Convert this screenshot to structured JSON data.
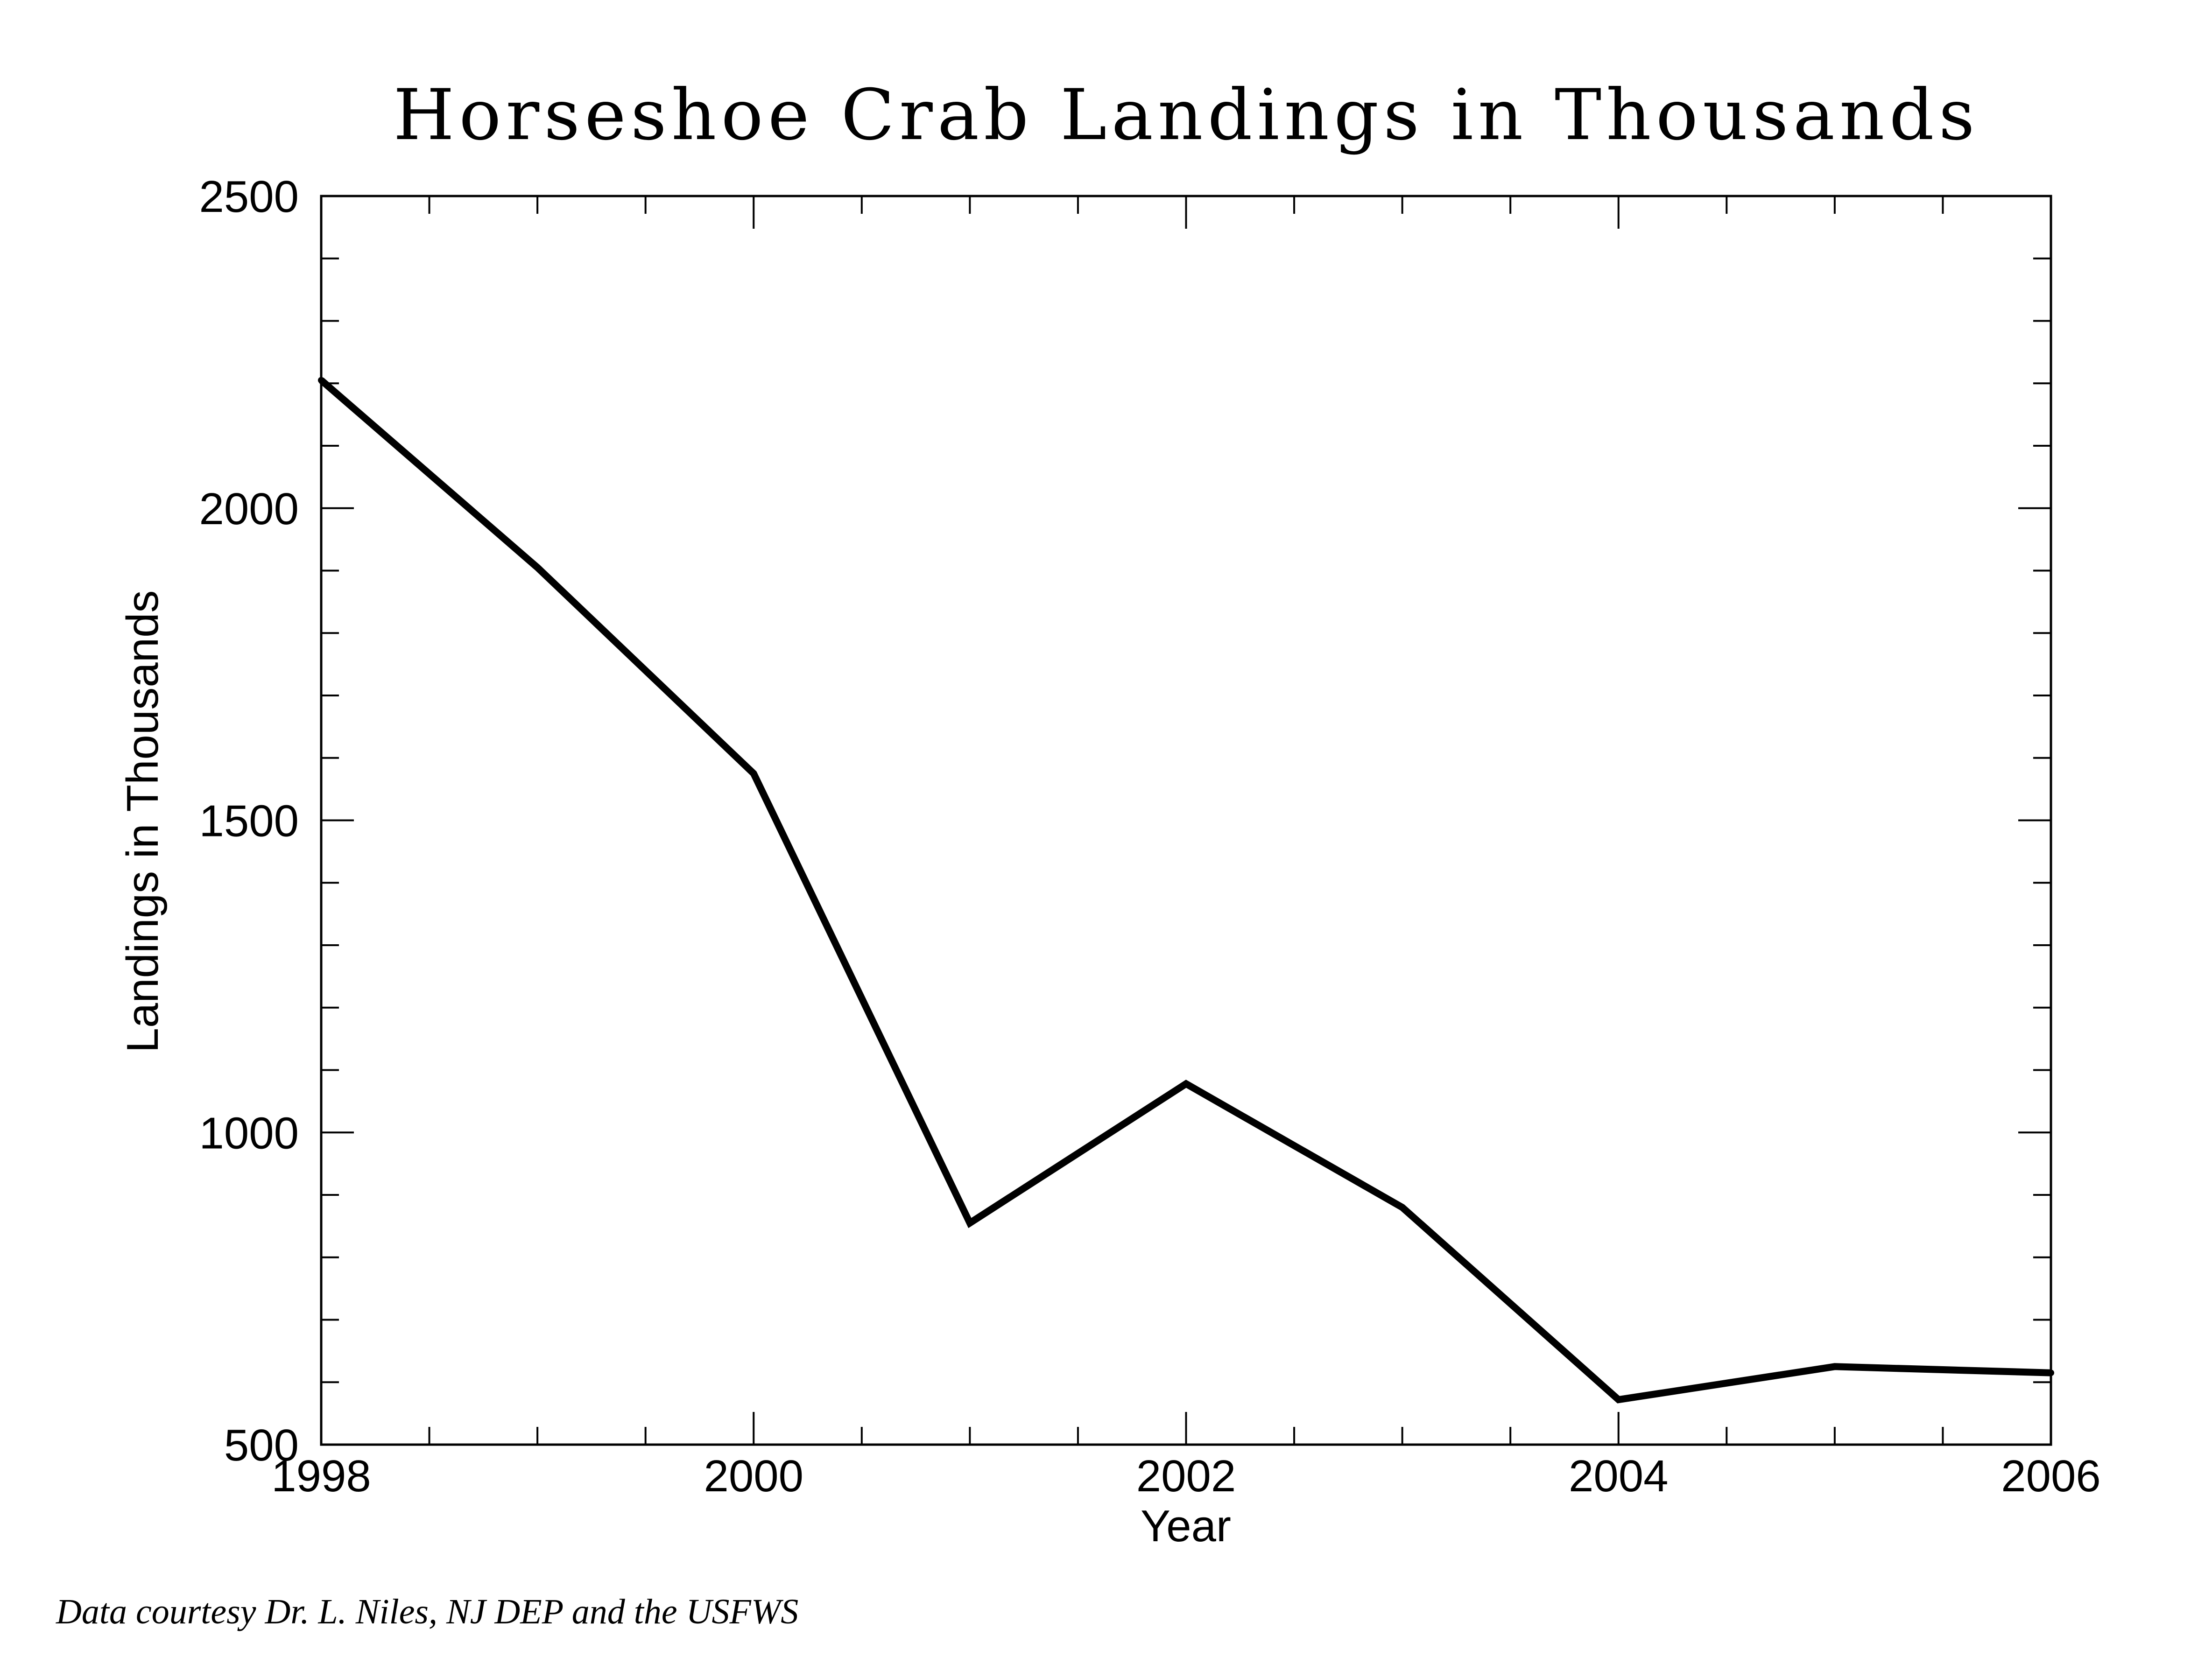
{
  "chart_data": {
    "type": "line",
    "title": "Horseshoe Crab Landings in Thousands",
    "xlabel": "Year",
    "ylabel": "Landings in Thousands",
    "x": [
      1998,
      1999,
      2000,
      2001,
      2002,
      2003,
      2004,
      2005,
      2006
    ],
    "series": [
      {
        "values": [
          2205,
          1905,
          1575,
          855,
          1078,
          880,
          572,
          625,
          615
        ]
      }
    ],
    "xlim": [
      1998,
      2006
    ],
    "ylim": [
      500,
      2500
    ],
    "x_ticks": [
      "1998",
      "2000",
      "2002",
      "2004",
      "2006"
    ],
    "y_ticks": [
      "500",
      "1000",
      "1500",
      "2000",
      "2500"
    ],
    "x_minor_step": 0.5,
    "y_minor_step": 100,
    "grid": false,
    "line_color": "#000000"
  },
  "footer": {
    "credit": "Data courtesy Dr. L. Niles, NJ DEP and the USFWS"
  }
}
